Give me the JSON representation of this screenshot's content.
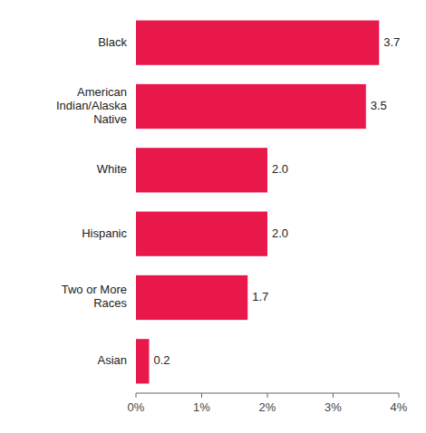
{
  "chart_data": {
    "type": "bar",
    "orientation": "horizontal",
    "categories": [
      "Black",
      "American\nIndian/Alaska\nNative",
      "White",
      "Hispanic",
      "Two or More\nRaces",
      "Asian"
    ],
    "values": [
      3.7,
      3.5,
      2.0,
      2.0,
      1.7,
      0.2
    ],
    "value_labels": [
      "3.7",
      "3.5",
      "2.0",
      "2.0",
      "1.7",
      "0.2"
    ],
    "data_labels": true,
    "color": "#E8184A",
    "xlim": [
      0,
      4.0
    ],
    "xticks": [
      {
        "value": 0,
        "label": "0%"
      },
      {
        "value": 1,
        "label": "1%"
      },
      {
        "value": 2,
        "label": "2%"
      },
      {
        "value": 3,
        "label": "3%"
      },
      {
        "value": 4,
        "label": "4%"
      }
    ],
    "grid": false
  }
}
